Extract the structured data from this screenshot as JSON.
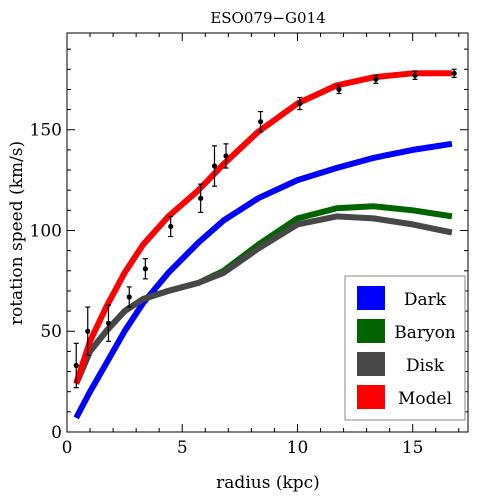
{
  "chart_data": {
    "type": "line",
    "title": "ESO079−G014",
    "xlabel": "radius (kpc)",
    "ylabel": "rotation speed (km/s)",
    "xlim": [
      0,
      17.4
    ],
    "ylim": [
      0,
      198
    ],
    "x_ticks": [
      0,
      5,
      10,
      15
    ],
    "y_ticks": [
      0,
      50,
      100,
      150
    ],
    "grid": false,
    "legend_position": "bottom-right",
    "series": [
      {
        "name": "Dark",
        "color": "#0000ff",
        "x": [
          0.4,
          1.0,
          1.7,
          2.5,
          3.3,
          4.4,
          5.7,
          6.8,
          8.3,
          10.0,
          11.7,
          13.3,
          15.0,
          16.7
        ],
        "y": [
          7,
          20,
          34,
          50,
          64,
          79,
          94,
          105,
          116,
          125,
          131,
          136,
          140,
          143
        ]
      },
      {
        "name": "Baryon",
        "color": "#006400",
        "x": [
          0.4,
          1.0,
          1.7,
          2.5,
          3.3,
          4.4,
          5.7,
          6.8,
          8.3,
          10.0,
          11.7,
          13.3,
          15.0,
          16.7
        ],
        "y": [
          24,
          40,
          50,
          60,
          66,
          70,
          74,
          80,
          93,
          106,
          111,
          112,
          110,
          107
        ]
      },
      {
        "name": "Disk",
        "color": "#474747",
        "x": [
          0.4,
          1.0,
          1.7,
          2.5,
          3.3,
          4.4,
          5.7,
          6.8,
          8.3,
          10.0,
          11.7,
          13.3,
          15.0,
          16.7
        ],
        "y": [
          24,
          40,
          50,
          60,
          66,
          70,
          74,
          79,
          91,
          103,
          107,
          106,
          103,
          99
        ]
      },
      {
        "name": "Model",
        "color": "#ff0000",
        "x": [
          0.4,
          1.0,
          1.7,
          2.5,
          3.3,
          4.4,
          5.7,
          6.8,
          8.3,
          10.0,
          11.7,
          13.3,
          15.0,
          16.7
        ],
        "y": [
          24,
          45,
          62,
          79,
          93,
          107,
          120,
          133,
          149,
          163,
          172,
          176,
          178,
          178
        ]
      }
    ],
    "observations": {
      "x": [
        0.4,
        0.9,
        1.8,
        2.7,
        3.4,
        4.5,
        5.8,
        6.4,
        6.9,
        8.4,
        10.1,
        11.8,
        13.4,
        15.1,
        16.8
      ],
      "y": [
        33,
        50,
        54,
        67,
        81,
        102,
        116,
        132,
        137,
        154,
        163,
        170,
        175,
        177,
        178
      ],
      "err": [
        11,
        12,
        9,
        5,
        5,
        5,
        7,
        10,
        6,
        5,
        3,
        2,
        2,
        2,
        2
      ]
    }
  }
}
